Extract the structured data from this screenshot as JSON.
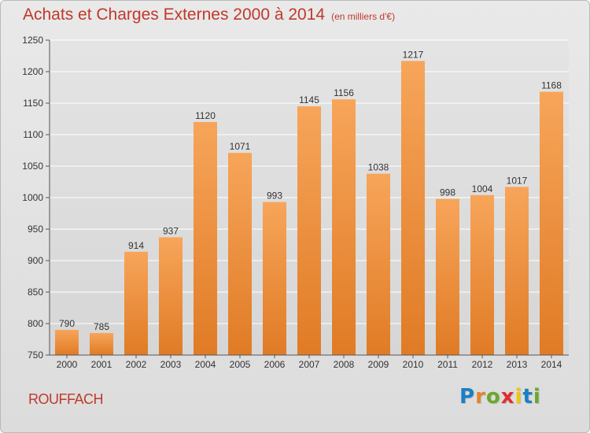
{
  "title": "Achats et Charges Externes 2000 à 2014",
  "subtitle": "(en milliers d'€)",
  "city": "ROUFFACH",
  "brand": {
    "text": "Proxiti",
    "letter_colors": [
      "#1b7fc4",
      "#e4842a",
      "#6aa82d",
      "#e02e2e",
      "#f1c40f",
      "#1b7fc4",
      "#6aa82d"
    ]
  },
  "colors": {
    "title": "#c0392b",
    "bar_top": "#f7a55a",
    "bar_bottom": "#e07b25",
    "grid": "#ffffff"
  },
  "chart_data": {
    "type": "bar",
    "title": "Achats et Charges Externes 2000 à 2014",
    "subtitle": "(en milliers d'€)",
    "categories": [
      "2000",
      "2001",
      "2002",
      "2003",
      "2004",
      "2005",
      "2006",
      "2007",
      "2008",
      "2009",
      "2010",
      "2011",
      "2012",
      "2013",
      "2014"
    ],
    "values": [
      790,
      785,
      914,
      937,
      1120,
      1071,
      993,
      1145,
      1156,
      1038,
      1217,
      998,
      1004,
      1017,
      1168
    ],
    "ylim": [
      750,
      1250
    ],
    "yticks": [
      750,
      800,
      850,
      900,
      950,
      1000,
      1050,
      1100,
      1150,
      1200,
      1250
    ],
    "grid": true,
    "xlabel": "",
    "ylabel": ""
  }
}
